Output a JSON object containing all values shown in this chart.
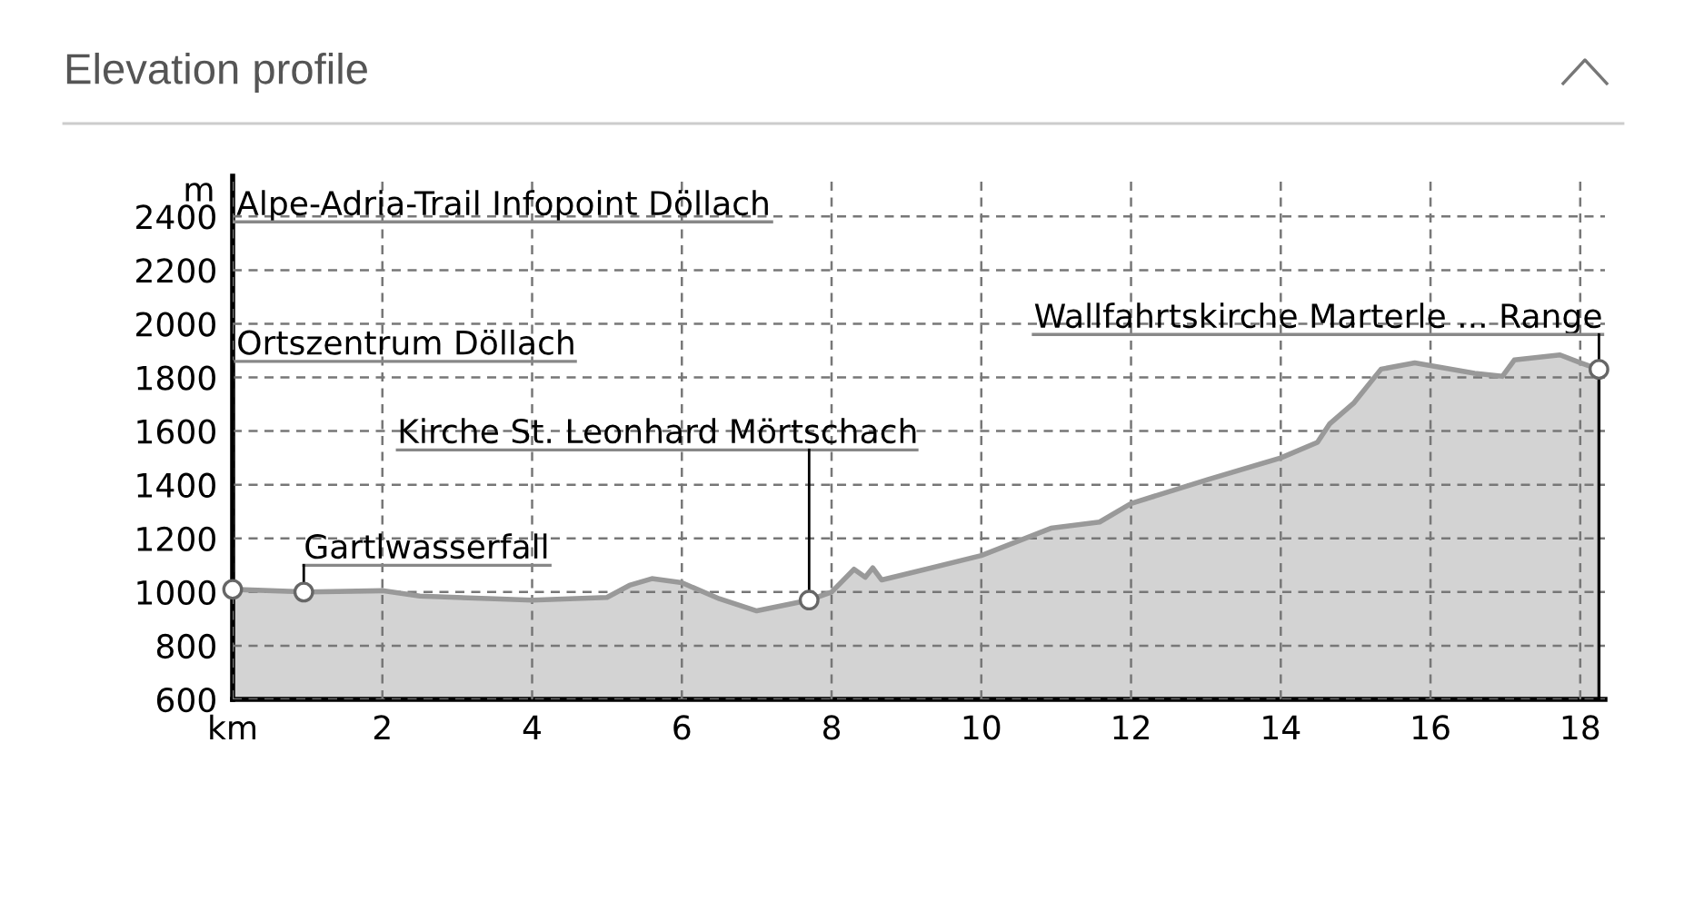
{
  "chart_data": {
    "type": "area",
    "title": "Elevation profile",
    "ylabel": "m",
    "x": [
      0,
      1,
      2,
      2.5,
      3.5,
      4,
      5,
      5.3,
      5.6,
      6,
      6.5,
      7,
      7.7,
      8,
      8.3,
      8.45,
      8.55,
      8.67,
      10,
      10.93,
      11.58,
      12,
      13.03,
      14,
      14.49,
      14.65,
      14.98,
      15.34,
      15.79,
      16.59,
      16.96,
      17.12,
      17.73,
      18.01,
      18.25
    ],
    "series": [
      {
        "color": "#d3d3d3",
        "values": [
          1010,
          1000,
          1005,
          985,
          975,
          970,
          980,
          1025,
          1050,
          1035,
          975,
          930,
          970,
          1000,
          1085,
          1055,
          1090,
          1045,
          1136,
          1238,
          1261,
          1330,
          1420,
          1500,
          1558,
          1626,
          1706,
          1831,
          1854,
          1815,
          1804,
          1865,
          1884,
          1854,
          1830
        ]
      }
    ],
    "xlim": [
      0,
      18.33
    ],
    "xticks": [
      {
        "value": 0,
        "label": "km"
      },
      2,
      4,
      6,
      8,
      10,
      12,
      14,
      16,
      18
    ],
    "ylim": [
      600,
      2550
    ],
    "yticks": [
      600,
      800,
      1000,
      1200,
      1400,
      1600,
      1800,
      2000,
      2200,
      2400
    ],
    "grid": true,
    "annotations": [
      "Alpe-Adria-Trail Infopoint Döllach",
      {
        "text": "Ortszentrum Döllach",
        "x": 0,
        "y": 1010
      },
      {
        "text": "Gartlwasserfall",
        "x": 0.95,
        "y": 1000
      },
      {
        "text": "Kirche St. Leonhard Mörtschach",
        "x": 7.7,
        "y": 970
      },
      {
        "text": "Wallfahrtskirche Marterle ... Range",
        "x": 18.25,
        "y": 1830
      }
    ]
  }
}
